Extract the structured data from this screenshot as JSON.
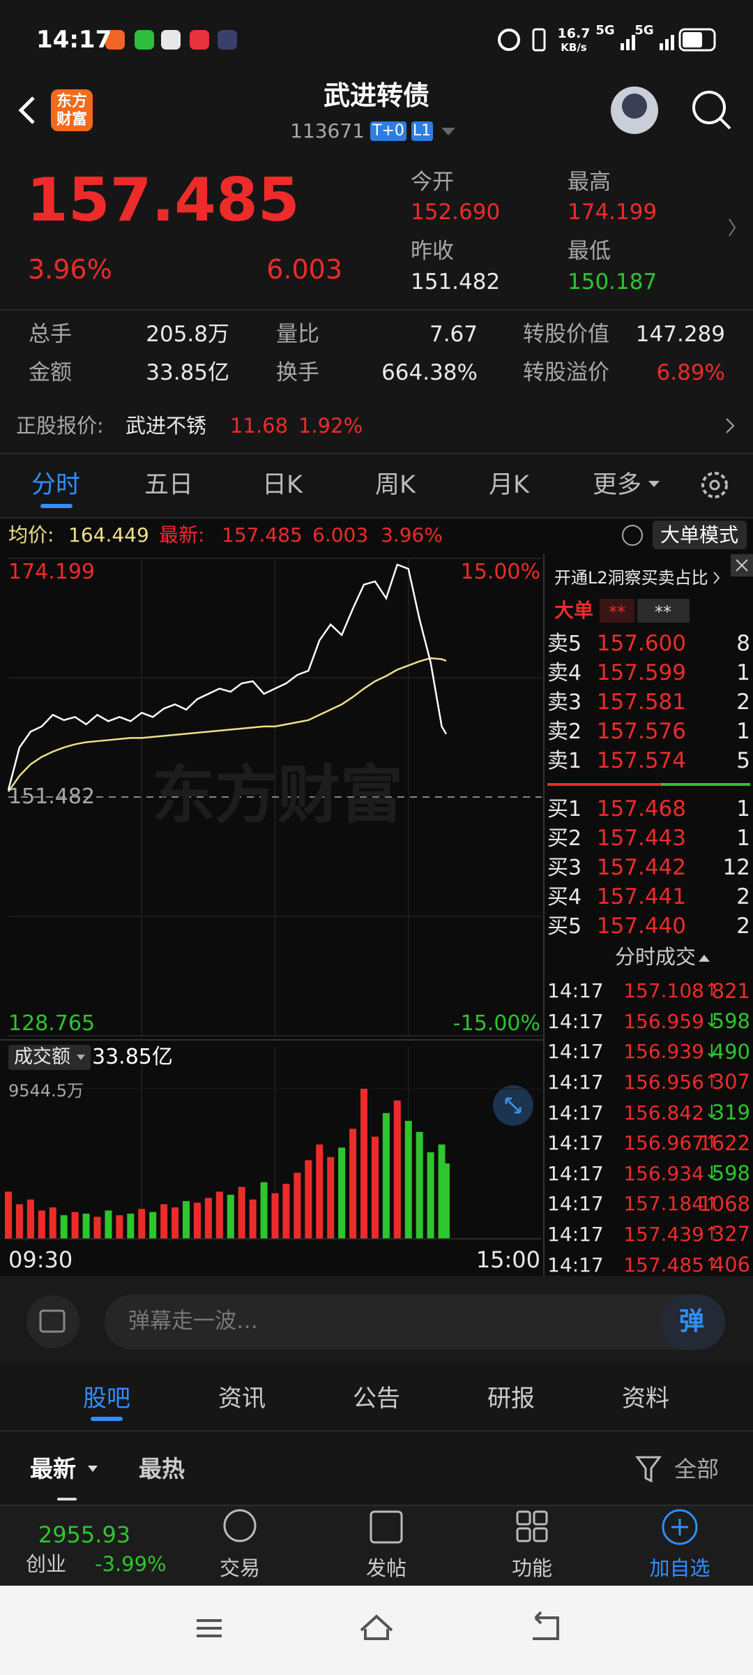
{
  "status_bar": {
    "time": "14:17",
    "speed": "16.7",
    "speed_unit": "KB/s",
    "net_1": "5G",
    "net_2": "5G"
  },
  "header": {
    "logo": [
      "东方",
      "财富"
    ],
    "title": "武进转债",
    "code": "113671",
    "tags": [
      "T+0",
      "L1"
    ]
  },
  "quote": {
    "price": "157.485",
    "change_pct": "3.96%",
    "change": "6.003",
    "open_label": "今开",
    "open": "152.690",
    "high_label": "最高",
    "high": "174.199",
    "prev_close_label": "昨收",
    "prev_close": "151.482",
    "low_label": "最低",
    "low": "150.187"
  },
  "stats": [
    [
      "总手",
      "205.8万",
      "量比",
      "7.67",
      "转股价值",
      "147.289"
    ],
    [
      "金额",
      "33.85亿",
      "换手",
      "664.38%",
      "转股溢价",
      "6.89%"
    ]
  ],
  "stock": {
    "label": "正股报价:",
    "name": "武进不锈",
    "price": "11.68",
    "pct": "1.92%"
  },
  "chart_tabs": [
    "分时",
    "五日",
    "日K",
    "周K",
    "月K",
    "更多"
  ],
  "info_bar": {
    "avg_label": "均价:",
    "avg": "164.449",
    "last_label": "最新:",
    "last": "157.485",
    "change": "6.003",
    "pct": "3.96%",
    "mode_button": "大单模式"
  },
  "intraday": {
    "type": "line",
    "watermark": "东方财富",
    "ylim": [
      128.765,
      174.199
    ],
    "prev_close": 151.482,
    "pct_labels": [
      "15.00%",
      "-15.00%"
    ],
    "xlim": [
      "09:30",
      "15:00"
    ],
    "x": [
      "09:30",
      "09:35",
      "09:40",
      "09:45",
      "09:50",
      "09:55",
      "10:00",
      "10:05",
      "10:10",
      "10:15",
      "10:20",
      "10:25",
      "10:30",
      "10:35",
      "10:40",
      "10:45",
      "10:50",
      "10:55",
      "11:00",
      "11:05",
      "11:10",
      "11:15",
      "11:20",
      "11:25",
      "11:30",
      "13:05",
      "13:10",
      "13:15",
      "13:20",
      "13:25",
      "13:30",
      "13:35",
      "13:40",
      "13:45",
      "13:50",
      "13:55",
      "14:00",
      "14:05",
      "14:10",
      "14:15",
      "14:17"
    ],
    "price": [
      152.15,
      156.2,
      157.7,
      158.2,
      159.3,
      158.8,
      159.1,
      158.4,
      159.3,
      158.7,
      159.1,
      158.7,
      159.5,
      159.1,
      159.9,
      160.3,
      159.8,
      160.8,
      161.3,
      161.8,
      161.5,
      162.3,
      162.5,
      161.3,
      161.8,
      162.3,
      163.1,
      163.5,
      166.4,
      167.9,
      166.9,
      169.4,
      171.7,
      172.0,
      170.4,
      173.6,
      173.2,
      168.4,
      164.3,
      158.2,
      157.485
    ],
    "avg": [
      152.0,
      153.5,
      154.6,
      155.3,
      155.8,
      156.2,
      156.5,
      156.7,
      156.8,
      156.9,
      157.0,
      157.1,
      157.1,
      157.2,
      157.3,
      157.4,
      157.5,
      157.6,
      157.7,
      157.8,
      157.9,
      158.0,
      158.1,
      158.2,
      158.2,
      158.4,
      158.6,
      158.8,
      159.3,
      159.8,
      160.3,
      161.0,
      161.8,
      162.5,
      163.0,
      163.6,
      164.0,
      164.4,
      164.7,
      164.6,
      164.449
    ],
    "price_color": "#ffffff",
    "avg_color": "#efe08a",
    "up_color": "#ee2b2b",
    "down_color": "#2ec52e"
  },
  "volume": {
    "label": "成交额",
    "total": "33.85亿",
    "max_tick": {
      "value": 9544.5,
      "label": "9544.5万"
    },
    "values": [
      3000,
      2200,
      2500,
      1800,
      2000,
      1500,
      1700,
      1600,
      1400,
      1800,
      1500,
      1600,
      1900,
      1700,
      2200,
      2000,
      2400,
      2300,
      2600,
      3000,
      2800,
      3300,
      2500,
      3600,
      2900,
      3500,
      4200,
      5000,
      6000,
      5200,
      5800,
      7000,
      9544.5,
      6500,
      8000,
      8800,
      7500,
      6800,
      5500,
      6000,
      4800
    ]
  },
  "order_book": {
    "promo": "开通L2洞察买卖占比",
    "tag": "大单",
    "stars": [
      "**",
      "**"
    ],
    "asks": [
      [
        "卖5",
        "157.600",
        "8"
      ],
      [
        "卖4",
        "157.599",
        "1"
      ],
      [
        "卖3",
        "157.581",
        "2"
      ],
      [
        "卖2",
        "157.576",
        "1"
      ],
      [
        "卖1",
        "157.574",
        "5"
      ]
    ],
    "bids": [
      [
        "买1",
        "157.468",
        "1"
      ],
      [
        "买2",
        "157.443",
        "1"
      ],
      [
        "买3",
        "157.442",
        "12"
      ],
      [
        "买4",
        "157.441",
        "2"
      ],
      [
        "买5",
        "157.440",
        "2"
      ]
    ]
  },
  "trades": {
    "title": "分时成交",
    "rows": [
      [
        "14:17",
        "157.108",
        "↑",
        "821"
      ],
      [
        "14:17",
        "156.959",
        "↓",
        "598"
      ],
      [
        "14:17",
        "156.939",
        "↓",
        "490"
      ],
      [
        "14:17",
        "156.956",
        "↑",
        "307"
      ],
      [
        "14:17",
        "156.842",
        "↓",
        "319"
      ],
      [
        "14:17",
        "156.967",
        "↑",
        "1622"
      ],
      [
        "14:17",
        "156.934",
        "↓",
        "598"
      ],
      [
        "14:17",
        "157.184",
        "↑",
        "1068"
      ],
      [
        "14:17",
        "157.439",
        "↑",
        "327"
      ],
      [
        "14:17",
        "157.485",
        "↑",
        "406"
      ]
    ]
  },
  "danmu": {
    "placeholder": "弹幕走一波…",
    "button": "弹"
  },
  "sections": [
    "股吧",
    "资讯",
    "公告",
    "研报",
    "资料"
  ],
  "feed_tabs": {
    "latest": "最新",
    "hot": "最热",
    "filter": "全部"
  },
  "bottom_nav": {
    "index_value": "2955.93",
    "index_name": "创业",
    "index_pct": "-3.99%",
    "items": [
      "交易",
      "发帖",
      "功能",
      "加自选"
    ]
  }
}
